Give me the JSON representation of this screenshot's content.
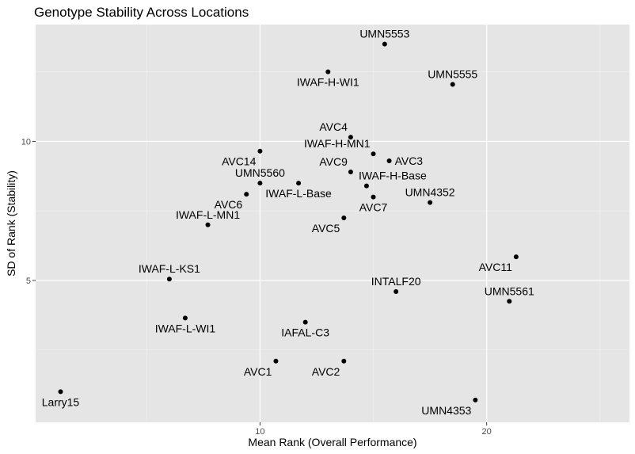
{
  "colors": {
    "panel_bg": "#e5e5e5",
    "grid_major": "#ffffff",
    "grid_minor": "#f2f2f2",
    "point": "#000000",
    "text": "#000000",
    "tick_text": "#4d4d4d"
  },
  "chart_data": {
    "type": "scatter",
    "title": "Genotype Stability Across Locations",
    "xlabel": "Mean Rank (Overall Performance)",
    "ylabel": "SD of Rank (Stability)",
    "xlim": [
      0.1,
      26.3
    ],
    "ylim": [
      -0.1,
      14.2
    ],
    "xticks": [
      10,
      20
    ],
    "yticks": [
      5,
      10
    ],
    "x_minor_ticks": [
      5,
      15,
      25
    ],
    "y_minor_ticks": [
      2.5,
      7.5,
      12.5
    ],
    "grid": true,
    "points": [
      {
        "label": "UMN5553",
        "x": 15.5,
        "y": 13.5,
        "label_pos": "above"
      },
      {
        "label": "IWAF-H-WI1",
        "x": 13.0,
        "y": 12.5,
        "label_pos": "below"
      },
      {
        "label": "UMN5555",
        "x": 18.5,
        "y": 12.05,
        "label_pos": "above"
      },
      {
        "label": "AVC4",
        "x": 14.0,
        "y": 10.15,
        "label_pos": "above-left"
      },
      {
        "label": "AVC14",
        "x": 10.0,
        "y": 9.65,
        "label_pos": "below-left"
      },
      {
        "label": "IWAF-H-MN1",
        "x": 15.0,
        "y": 9.55,
        "label_pos": "above-left"
      },
      {
        "label": "AVC3",
        "x": 15.7,
        "y": 9.3,
        "label_pos": "right"
      },
      {
        "label": "AVC9",
        "x": 14.0,
        "y": 8.9,
        "label_pos": "above-left"
      },
      {
        "label": "UMN5560",
        "x": 10.0,
        "y": 8.5,
        "label_pos": "above"
      },
      {
        "label": "IWAF-L-Base",
        "x": 11.7,
        "y": 8.5,
        "label_pos": "below"
      },
      {
        "label": "IWAF-H-Base",
        "x": 14.7,
        "y": 8.4,
        "label_pos": "above-right"
      },
      {
        "label": "AVC6",
        "x": 9.4,
        "y": 8.1,
        "label_pos": "below-left"
      },
      {
        "label": "AVC7",
        "x": 15.0,
        "y": 8.0,
        "label_pos": "below"
      },
      {
        "label": "UMN4352",
        "x": 17.5,
        "y": 7.8,
        "label_pos": "above"
      },
      {
        "label": "AVC5",
        "x": 13.7,
        "y": 7.25,
        "label_pos": "below-left"
      },
      {
        "label": "IWAF-L-MN1",
        "x": 7.7,
        "y": 7.0,
        "label_pos": "above"
      },
      {
        "label": "AVC11",
        "x": 21.3,
        "y": 5.85,
        "label_pos": "below-left"
      },
      {
        "label": "IWAF-L-KS1",
        "x": 6.0,
        "y": 5.05,
        "label_pos": "above"
      },
      {
        "label": "INTALF20",
        "x": 16.0,
        "y": 4.6,
        "label_pos": "above"
      },
      {
        "label": "UMN5561",
        "x": 21.0,
        "y": 4.25,
        "label_pos": "above"
      },
      {
        "label": "IWAF-L-WI1",
        "x": 6.7,
        "y": 3.65,
        "label_pos": "below"
      },
      {
        "label": "IAFAL-C3",
        "x": 12.0,
        "y": 3.5,
        "label_pos": "below"
      },
      {
        "label": "AVC1",
        "x": 10.7,
        "y": 2.1,
        "label_pos": "below-left"
      },
      {
        "label": "AVC2",
        "x": 13.7,
        "y": 2.1,
        "label_pos": "below-left"
      },
      {
        "label": "Larry15",
        "x": 1.2,
        "y": 1.0,
        "label_pos": "below"
      },
      {
        "label": "UMN4353",
        "x": 19.5,
        "y": 0.7,
        "label_pos": "below-left"
      }
    ]
  }
}
